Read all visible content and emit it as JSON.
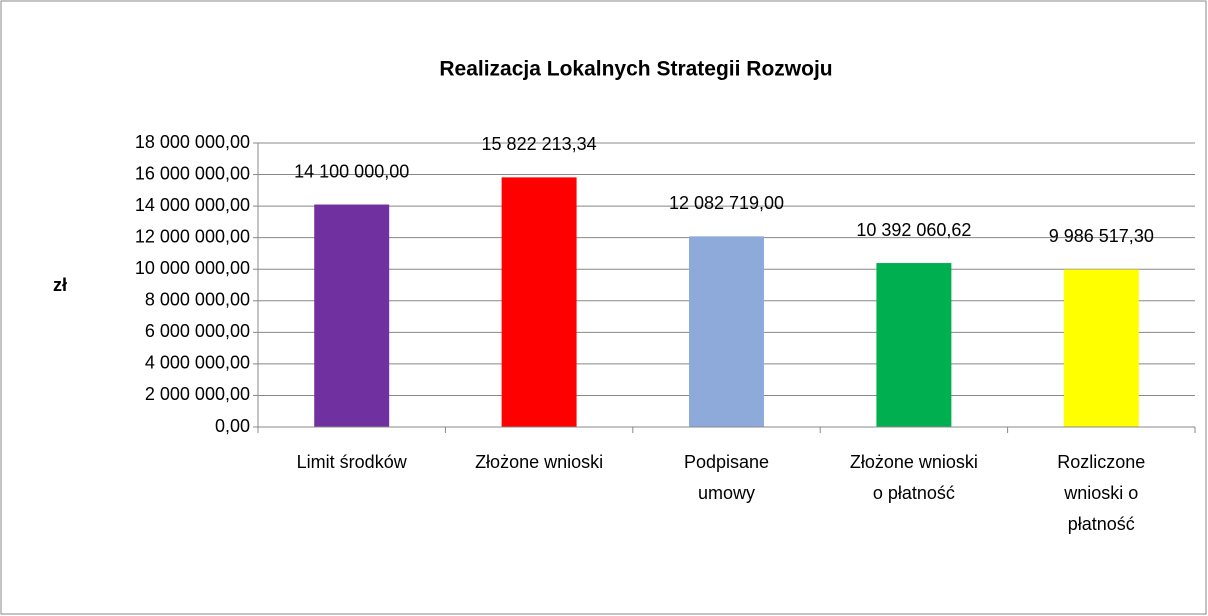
{
  "chart_data": {
    "type": "bar",
    "title": "Realizacja Lokalnych Strategii Rozwoju",
    "y_label": "zł",
    "categories": [
      "Limit środków",
      "Złożone wnioski",
      "Podpisane\numowy",
      "Złożone wnioski\no płatność",
      "Rozliczone\nwnioski o\npłatność"
    ],
    "values": [
      14100000,
      15822213.34,
      12082719,
      10392060.62,
      9986517.3
    ],
    "value_labels": [
      "14 100 000,00",
      "15 822 213,34",
      "12 082 719,00",
      "10 392 060,62",
      "9 986 517,30"
    ],
    "colors": [
      "#7030a0",
      "#ff0000",
      "#8eaadb",
      "#00b050",
      "#ffff00"
    ],
    "ylim": [
      0,
      18000000
    ],
    "yticks": [
      {
        "value": 0,
        "label": "0,00"
      },
      {
        "value": 2000000,
        "label": "2 000 000,00"
      },
      {
        "value": 4000000,
        "label": "4 000 000,00"
      },
      {
        "value": 6000000,
        "label": "6 000 000,00"
      },
      {
        "value": 8000000,
        "label": "8 000 000,00"
      },
      {
        "value": 10000000,
        "label": "10 000 000,00"
      },
      {
        "value": 12000000,
        "label": "12 000 000,00"
      },
      {
        "value": 14000000,
        "label": "14 000 000,00"
      },
      {
        "value": 16000000,
        "label": "16 000 000,00"
      },
      {
        "value": 18000000,
        "label": "18 000 000,00"
      }
    ],
    "grid": true
  }
}
